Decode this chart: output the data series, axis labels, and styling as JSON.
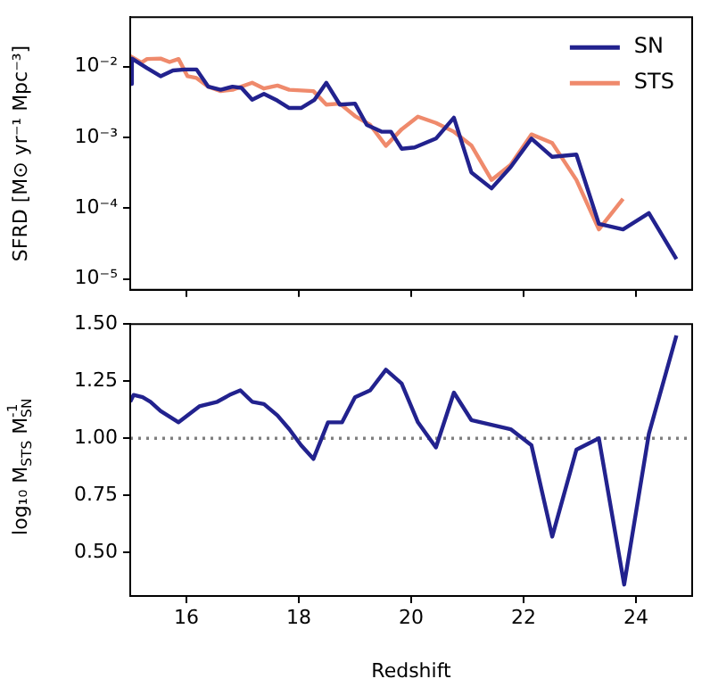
{
  "chart_data": [
    {
      "type": "line",
      "ylabel": "SFRD [M⊙ yr⁻¹ Mpc⁻³]",
      "log": "y",
      "legend": "top right",
      "tick_labels": "y",
      "grid": false,
      "xlim": [
        15,
        25
      ],
      "xticks": [
        16,
        18,
        20,
        22,
        24
      ],
      "ylim": [
        7e-06,
        0.05
      ],
      "yticks": [
        {
          "value": 1e-05,
          "label": "10⁻⁵"
        },
        {
          "value": 0.0001,
          "label": "10⁻⁴"
        },
        {
          "value": 0.001,
          "label": "10⁻³"
        },
        {
          "value": 0.01,
          "label": "10⁻²"
        }
      ],
      "series": [
        {
          "name": "SN",
          "color": "#22228e",
          "x": [
            15.0,
            15.03,
            15.3,
            15.54,
            15.76,
            15.97,
            16.18,
            16.39,
            16.61,
            16.82,
            16.98,
            17.17,
            17.38,
            17.62,
            17.83,
            18.04,
            18.28,
            18.49,
            18.73,
            19.0,
            19.21,
            19.48,
            19.64,
            19.83,
            20.06,
            20.44,
            20.76,
            21.07,
            21.43,
            21.77,
            22.14,
            22.51,
            22.94,
            23.34,
            23.77,
            24.23,
            24.72
          ],
          "values": [
            0.0057,
            0.013,
            0.0095,
            0.0073,
            0.0088,
            0.0091,
            0.0091,
            0.0052,
            0.0047,
            0.0052,
            0.005,
            0.0034,
            0.0041,
            0.0033,
            0.0026,
            0.0026,
            0.0034,
            0.0059,
            0.0029,
            0.003,
            0.0015,
            0.0012,
            0.0012,
            0.00069,
            0.00072,
            0.00096,
            0.0019,
            0.00032,
            0.00019,
            0.00038,
            0.00096,
            0.00053,
            0.00057,
            6e-05,
            5e-05,
            8.5e-05,
            1.9e-05
          ]
        },
        {
          "name": "STS",
          "color": "#ef8a6c",
          "x": [
            15.0,
            15.2,
            15.3,
            15.54,
            15.7,
            15.86,
            16.02,
            16.18,
            16.39,
            16.61,
            16.82,
            17.17,
            17.38,
            17.62,
            17.83,
            18.26,
            18.49,
            18.73,
            19.0,
            19.27,
            19.55,
            19.83,
            20.12,
            20.44,
            20.76,
            21.07,
            21.43,
            21.77,
            22.14,
            22.51,
            22.94,
            23.34,
            23.77
          ],
          "values": [
            0.014,
            0.0114,
            0.0128,
            0.013,
            0.0116,
            0.0128,
            0.0073,
            0.0069,
            0.0052,
            0.0045,
            0.0047,
            0.0059,
            0.0049,
            0.0054,
            0.0047,
            0.0045,
            0.0029,
            0.003,
            0.002,
            0.0015,
            0.00076,
            0.0013,
            0.00196,
            0.0016,
            0.0012,
            0.00077,
            0.00025,
            0.00041,
            0.0011,
            0.00083,
            0.00025,
            5e-05,
            0.000135
          ]
        }
      ]
    },
    {
      "type": "line",
      "xlabel": "Redshift",
      "ylabel": "log₁₀ M$_{STS}$ M$_{SN}$$^{-1}$",
      "grid": false,
      "xlim": [
        15,
        25
      ],
      "xticks": [
        16,
        18,
        20,
        22,
        24
      ],
      "ylim": [
        0.31,
        1.5
      ],
      "yticks": [
        {
          "value": 0.5,
          "label": "0.50"
        },
        {
          "value": 0.75,
          "label": "0.75"
        },
        {
          "value": 1.0,
          "label": "1.00"
        },
        {
          "value": 1.25,
          "label": "1.25"
        },
        {
          "value": 1.5,
          "label": "1.50"
        }
      ],
      "ref_lines": [
        {
          "axis": "y",
          "value": 1.0,
          "color": "#808080",
          "line_style": "dotted"
        }
      ],
      "series": [
        {
          "color": "#22228e",
          "x": [
            15.0,
            15.06,
            15.22,
            15.36,
            15.54,
            15.86,
            16.23,
            16.55,
            16.77,
            16.96,
            17.17,
            17.38,
            17.62,
            17.83,
            18.04,
            18.26,
            18.52,
            18.77,
            19.0,
            19.27,
            19.55,
            19.83,
            20.12,
            20.44,
            20.76,
            21.07,
            21.77,
            22.14,
            22.51,
            22.94,
            23.34,
            23.79,
            24.23,
            24.72
          ],
          "values": [
            1.16,
            1.19,
            1.18,
            1.16,
            1.12,
            1.07,
            1.14,
            1.16,
            1.19,
            1.21,
            1.16,
            1.15,
            1.1,
            1.04,
            0.97,
            0.91,
            1.07,
            1.07,
            1.18,
            1.21,
            1.3,
            1.24,
            1.07,
            0.96,
            1.2,
            1.08,
            1.04,
            0.97,
            0.57,
            0.95,
            1.0,
            0.36,
            1.02,
            1.45
          ]
        }
      ]
    }
  ]
}
